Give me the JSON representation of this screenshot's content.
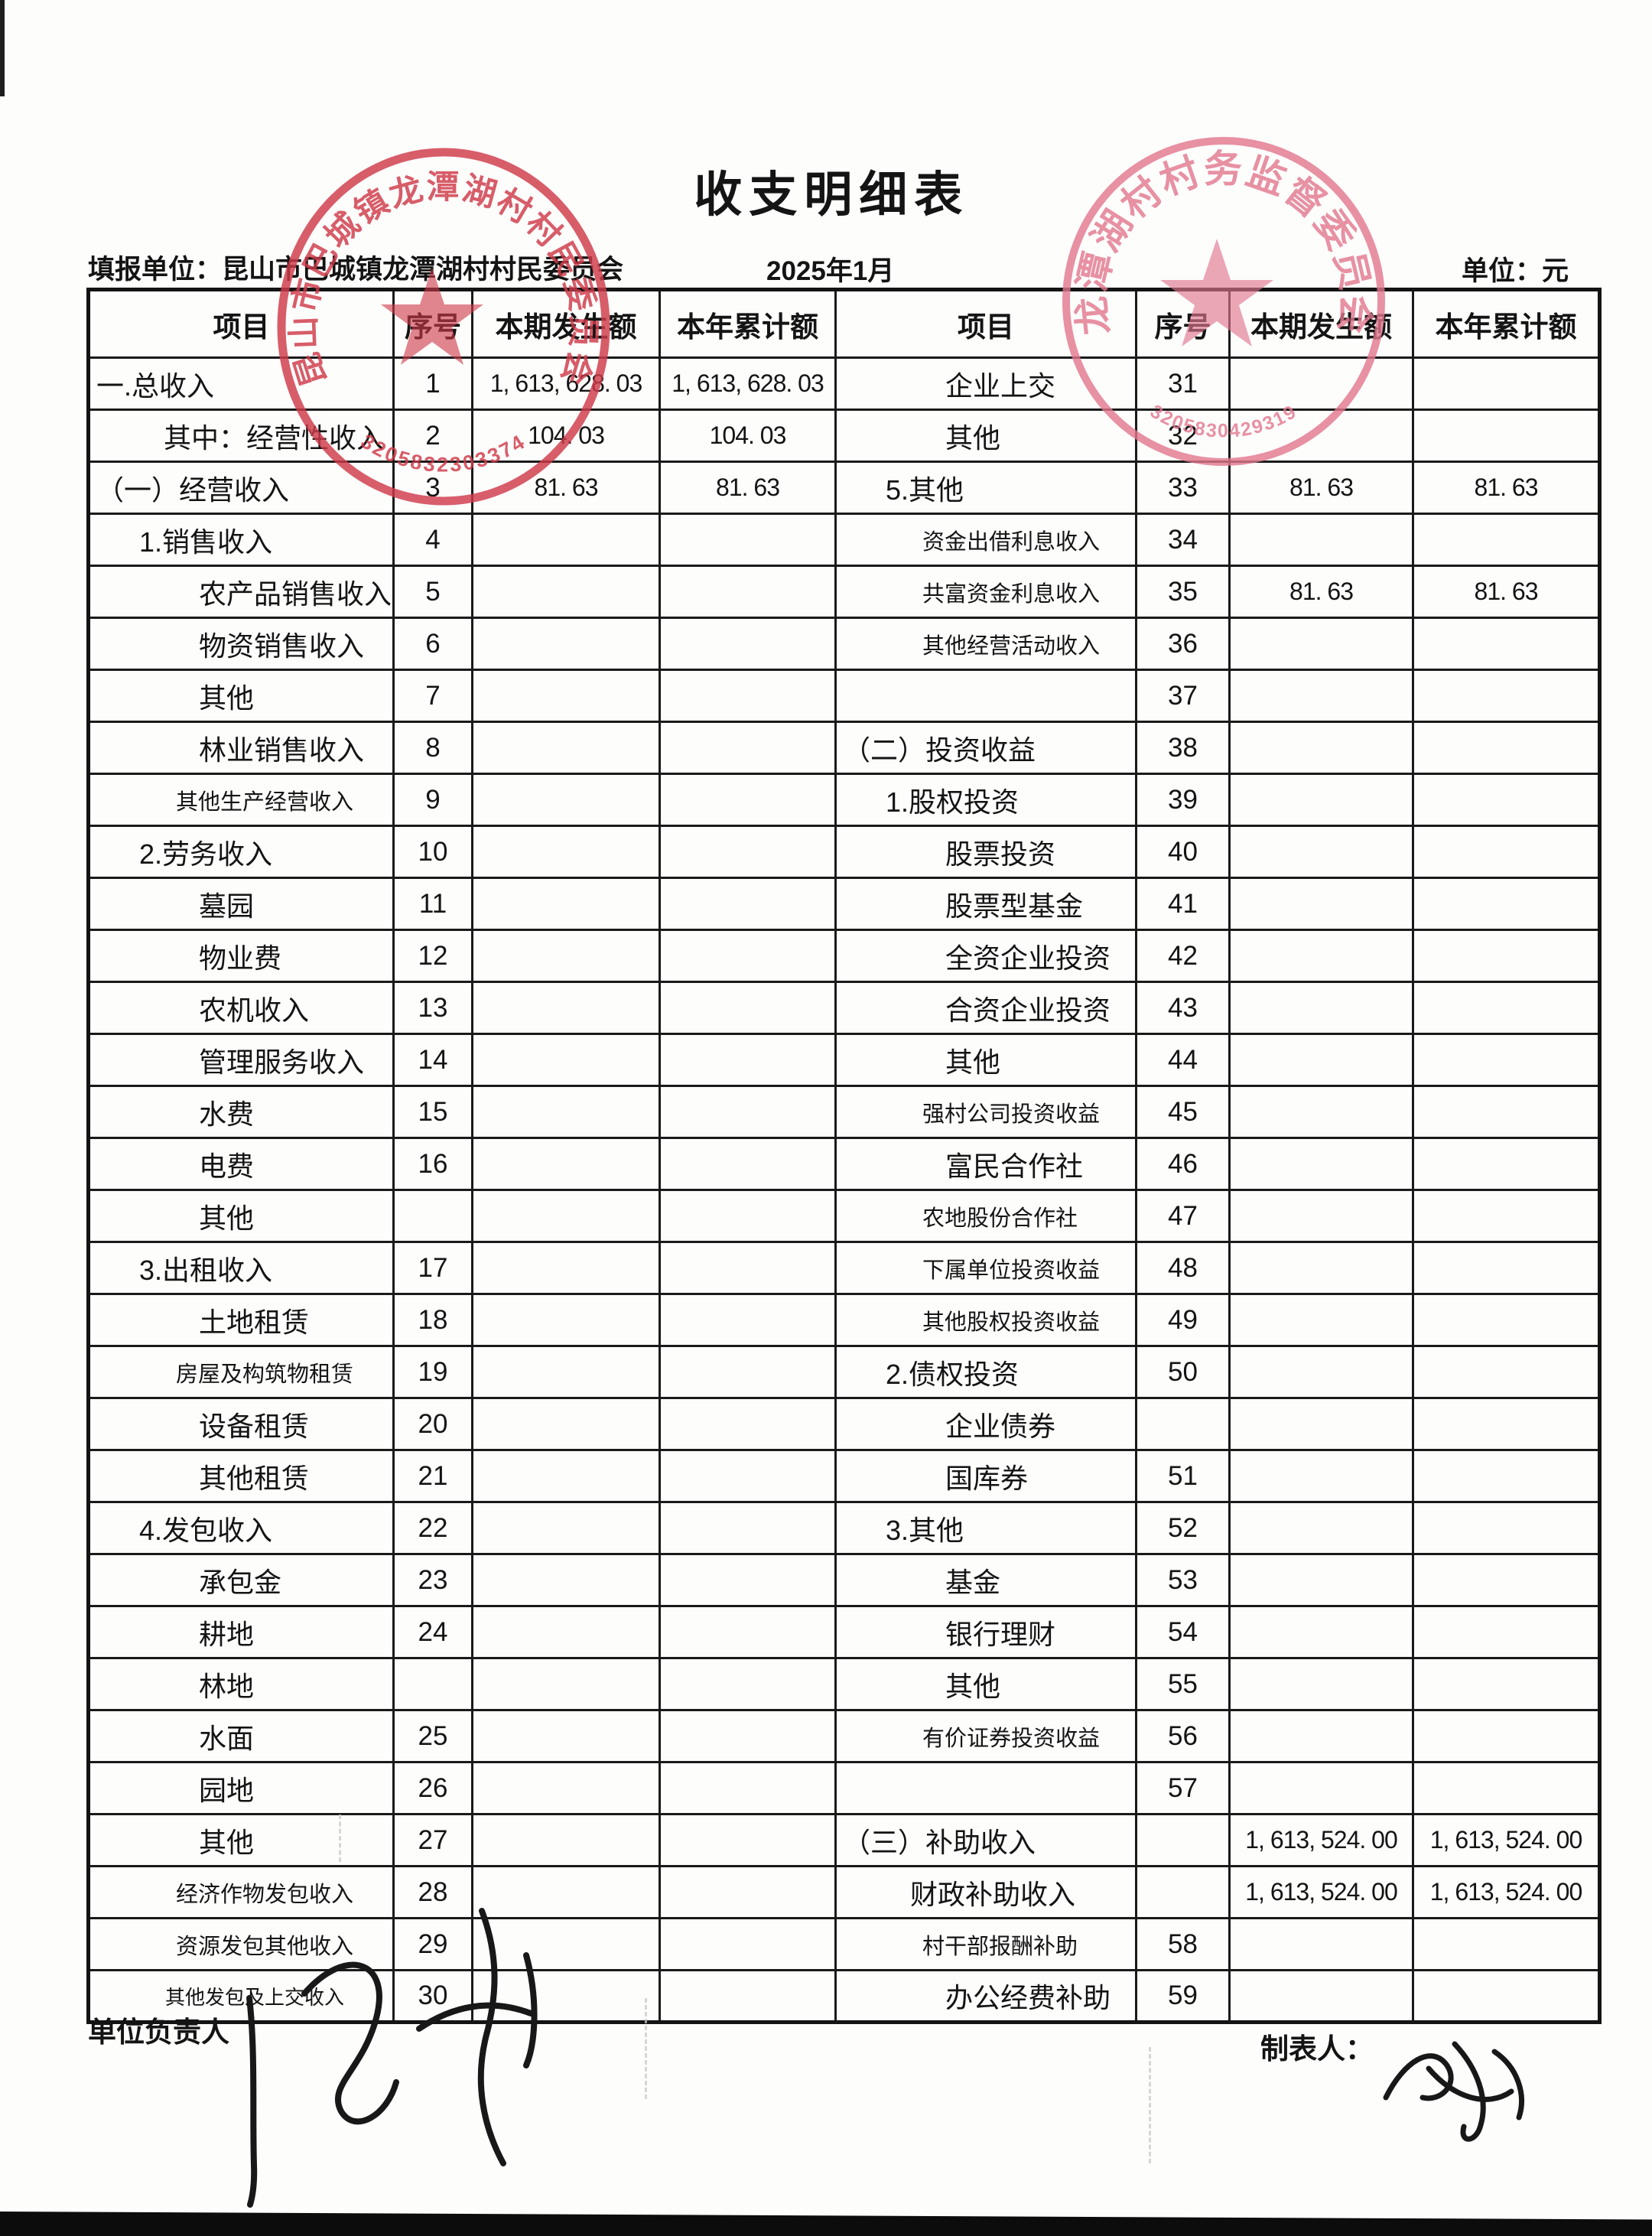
{
  "title": "收支明细表",
  "meta": {
    "report_unit": "填报单位：昆山市巴城镇龙潭湖村村民委员会",
    "period": "2025年1月",
    "unit": "单位：元"
  },
  "table": {
    "headers": [
      "项目",
      "序号",
      "本期发生额",
      "本年累计额"
    ],
    "left_rows": [
      {
        "item": "一.总收入",
        "no": "1",
        "cur": "1, 613, 628. 03",
        "ytd": "1, 613, 628. 03",
        "cls": "i0"
      },
      {
        "item": "其中：经营性收入",
        "no": "2",
        "cur": "104. 03",
        "ytd": "104. 03",
        "cls": "i2"
      },
      {
        "item": "（一）经营收入",
        "no": "3",
        "cur": "81. 63",
        "ytd": "81. 63",
        "cls": "i0"
      },
      {
        "item": "1.销售收入",
        "no": "4",
        "cur": "",
        "ytd": "",
        "cls": "i1"
      },
      {
        "item": "农产品销售收入",
        "no": "5",
        "cur": "",
        "ytd": "",
        "cls": "i3"
      },
      {
        "item": "物资销售收入",
        "no": "6",
        "cur": "",
        "ytd": "",
        "cls": "i3"
      },
      {
        "item": "其他",
        "no": "7",
        "cur": "",
        "ytd": "",
        "cls": "i3"
      },
      {
        "item": "林业销售收入",
        "no": "8",
        "cur": "",
        "ytd": "",
        "cls": "i3"
      },
      {
        "item": "其他生产经营收入",
        "no": "9",
        "cur": "",
        "ytd": "",
        "cls": "sm"
      },
      {
        "item": "2.劳务收入",
        "no": "10",
        "cur": "",
        "ytd": "",
        "cls": "i1"
      },
      {
        "item": "墓园",
        "no": "11",
        "cur": "",
        "ytd": "",
        "cls": "i3"
      },
      {
        "item": "物业费",
        "no": "12",
        "cur": "",
        "ytd": "",
        "cls": "i3"
      },
      {
        "item": "农机收入",
        "no": "13",
        "cur": "",
        "ytd": "",
        "cls": "i3"
      },
      {
        "item": "管理服务收入",
        "no": "14",
        "cur": "",
        "ytd": "",
        "cls": "i3"
      },
      {
        "item": "水费",
        "no": "15",
        "cur": "",
        "ytd": "",
        "cls": "i3"
      },
      {
        "item": "电费",
        "no": "16",
        "cur": "",
        "ytd": "",
        "cls": "i3"
      },
      {
        "item": "其他",
        "no": "",
        "cur": "",
        "ytd": "",
        "cls": "i3"
      },
      {
        "item": "3.出租收入",
        "no": "17",
        "cur": "",
        "ytd": "",
        "cls": "i1"
      },
      {
        "item": "土地租赁",
        "no": "18",
        "cur": "",
        "ytd": "",
        "cls": "i3"
      },
      {
        "item": "房屋及构筑物租赁",
        "no": "19",
        "cur": "",
        "ytd": "",
        "cls": "sm"
      },
      {
        "item": "设备租赁",
        "no": "20",
        "cur": "",
        "ytd": "",
        "cls": "i3"
      },
      {
        "item": "其他租赁",
        "no": "21",
        "cur": "",
        "ytd": "",
        "cls": "i3"
      },
      {
        "item": "4.发包收入",
        "no": "22",
        "cur": "",
        "ytd": "",
        "cls": "i1"
      },
      {
        "item": "承包金",
        "no": "23",
        "cur": "",
        "ytd": "",
        "cls": "i3"
      },
      {
        "item": "耕地",
        "no": "24",
        "cur": "",
        "ytd": "",
        "cls": "i3"
      },
      {
        "item": "林地",
        "no": "",
        "cur": "",
        "ytd": "",
        "cls": "i3"
      },
      {
        "item": "水面",
        "no": "25",
        "cur": "",
        "ytd": "",
        "cls": "i3"
      },
      {
        "item": "园地",
        "no": "26",
        "cur": "",
        "ytd": "",
        "cls": "i3"
      },
      {
        "item": "其他",
        "no": "27",
        "cur": "",
        "ytd": "",
        "cls": "i3"
      },
      {
        "item": "经济作物发包收入",
        "no": "28",
        "cur": "",
        "ytd": "",
        "cls": "sm"
      },
      {
        "item": "资源发包其他收入",
        "no": "29",
        "cur": "",
        "ytd": "",
        "cls": "sm"
      },
      {
        "item": "其他发包及上交收入",
        "no": "30",
        "cur": "",
        "ytd": "",
        "cls": "xs"
      }
    ],
    "right_rows": [
      {
        "item": "企业上交",
        "no": "31",
        "cur": "",
        "ytd": "",
        "cls": "i3"
      },
      {
        "item": "其他",
        "no": "32",
        "cur": "",
        "ytd": "",
        "cls": "i3"
      },
      {
        "item": "5.其他",
        "no": "33",
        "cur": "81. 63",
        "ytd": "81. 63",
        "cls": "i1"
      },
      {
        "item": "资金出借利息收入",
        "no": "34",
        "cur": "",
        "ytd": "",
        "cls": "sm"
      },
      {
        "item": "共富资金利息收入",
        "no": "35",
        "cur": "81. 63",
        "ytd": "81. 63",
        "cls": "sm"
      },
      {
        "item": "其他经营活动收入",
        "no": "36",
        "cur": "",
        "ytd": "",
        "cls": "sm"
      },
      {
        "item": "",
        "no": "37",
        "cur": "",
        "ytd": "",
        "cls": "i3"
      },
      {
        "item": "（二）投资收益",
        "no": "38",
        "cur": "",
        "ytd": "",
        "cls": "i0"
      },
      {
        "item": "1.股权投资",
        "no": "39",
        "cur": "",
        "ytd": "",
        "cls": "i1"
      },
      {
        "item": "股票投资",
        "no": "40",
        "cur": "",
        "ytd": "",
        "cls": "i3"
      },
      {
        "item": "股票型基金",
        "no": "41",
        "cur": "",
        "ytd": "",
        "cls": "i3"
      },
      {
        "item": "全资企业投资",
        "no": "42",
        "cur": "",
        "ytd": "",
        "cls": "i3"
      },
      {
        "item": "合资企业投资",
        "no": "43",
        "cur": "",
        "ytd": "",
        "cls": "i3"
      },
      {
        "item": "其他",
        "no": "44",
        "cur": "",
        "ytd": "",
        "cls": "i3"
      },
      {
        "item": "强村公司投资收益",
        "no": "45",
        "cur": "",
        "ytd": "",
        "cls": "sm"
      },
      {
        "item": "富民合作社",
        "no": "46",
        "cur": "",
        "ytd": "",
        "cls": "i3"
      },
      {
        "item": "农地股份合作社",
        "no": "47",
        "cur": "",
        "ytd": "",
        "cls": "sm"
      },
      {
        "item": "下属单位投资收益",
        "no": "48",
        "cur": "",
        "ytd": "",
        "cls": "sm"
      },
      {
        "item": "其他股权投资收益",
        "no": "49",
        "cur": "",
        "ytd": "",
        "cls": "sm"
      },
      {
        "item": "2.债权投资",
        "no": "50",
        "cur": "",
        "ytd": "",
        "cls": "i1"
      },
      {
        "item": "企业债券",
        "no": "",
        "cur": "",
        "ytd": "",
        "cls": "i3"
      },
      {
        "item": "国库券",
        "no": "51",
        "cur": "",
        "ytd": "",
        "cls": "i3"
      },
      {
        "item": "3.其他",
        "no": "52",
        "cur": "",
        "ytd": "",
        "cls": "i1"
      },
      {
        "item": "基金",
        "no": "53",
        "cur": "",
        "ytd": "",
        "cls": "i3"
      },
      {
        "item": "银行理财",
        "no": "54",
        "cur": "",
        "ytd": "",
        "cls": "i3"
      },
      {
        "item": "其他",
        "no": "55",
        "cur": "",
        "ytd": "",
        "cls": "i3"
      },
      {
        "item": "有价证券投资收益",
        "no": "56",
        "cur": "",
        "ytd": "",
        "cls": "sm"
      },
      {
        "item": "",
        "no": "57",
        "cur": "",
        "ytd": "",
        "cls": "i3"
      },
      {
        "item": "（三）补助收入",
        "no": "",
        "cur": "1, 613, 524. 00",
        "ytd": "1, 613, 524. 00",
        "cls": "i0"
      },
      {
        "item": "财政补助收入",
        "no": "",
        "cur": "1, 613, 524. 00",
        "ytd": "1, 613, 524. 00",
        "cls": "i2"
      },
      {
        "item": "村干部报酬补助",
        "no": "58",
        "cur": "",
        "ytd": "",
        "cls": "sm"
      },
      {
        "item": "办公经费补助",
        "no": "59",
        "cur": "",
        "ytd": "",
        "cls": "i3"
      }
    ]
  },
  "stamps": {
    "left": {
      "name": "昆山市巴城镇龙潭湖村村民委员会",
      "code": "3205832303374",
      "color": "#cf3a4a"
    },
    "right": {
      "name": "龙潭湖村村务监督委员会",
      "code": "3205830429319",
      "color": "#e2778e"
    }
  },
  "footer": {
    "responsible_label": "单位负责人",
    "preparer_label": "制表人："
  }
}
